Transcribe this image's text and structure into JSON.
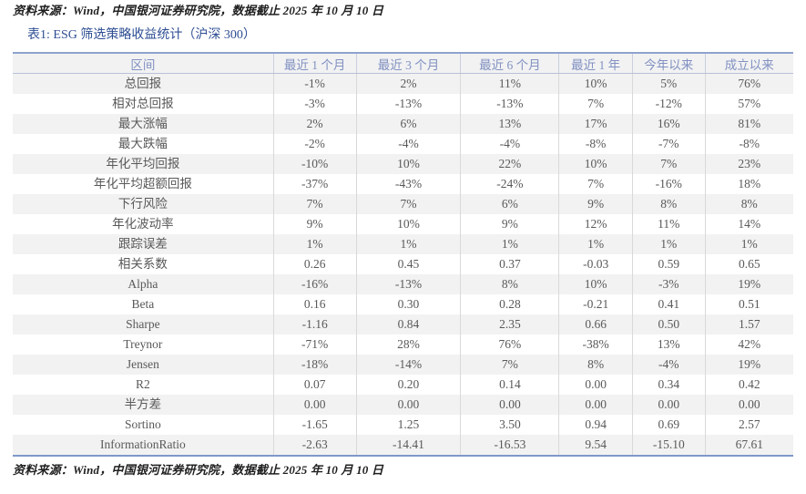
{
  "page": {
    "source_note_top": "资料来源：Wind，中国银河证券研究院，数据截止 2025 年 10 月 10 日",
    "table_title": "表1: ESG 筛选策略收益统计（沪深 300）",
    "source_note_bottom": "资料来源：Wind，中国银河证券研究院，数据截止 2025 年 10 月 10 日"
  },
  "colors": {
    "title_blue": "#2e4e93",
    "header_text_blue": "#8191c1",
    "table_border_blue": "#8ea3cd",
    "body_text_gray": "#595959",
    "stripe_gray": "#f2f2f2",
    "inner_grid_gray": "#d9d9d9"
  },
  "table": {
    "columns": [
      "区间",
      "最近 1 个月",
      "最近 3 个月",
      "最近 6 个月",
      "最近 1 年",
      "今年以来",
      "成立以来"
    ],
    "rows": [
      {
        "label": "总回报",
        "values": [
          "-1%",
          "2%",
          "11%",
          "10%",
          "5%",
          "76%"
        ]
      },
      {
        "label": "相对总回报",
        "values": [
          "-3%",
          "-13%",
          "-13%",
          "7%",
          "-12%",
          "57%"
        ]
      },
      {
        "label": "最大涨幅",
        "values": [
          "2%",
          "6%",
          "13%",
          "17%",
          "16%",
          "81%"
        ]
      },
      {
        "label": "最大跌幅",
        "values": [
          "-2%",
          "-4%",
          "-4%",
          "-8%",
          "-7%",
          "-8%"
        ]
      },
      {
        "label": "年化平均回报",
        "values": [
          "-10%",
          "10%",
          "22%",
          "10%",
          "7%",
          "23%"
        ]
      },
      {
        "label": "年化平均超额回报",
        "values": [
          "-37%",
          "-43%",
          "-24%",
          "7%",
          "-16%",
          "18%"
        ]
      },
      {
        "label": "下行风险",
        "values": [
          "7%",
          "7%",
          "6%",
          "9%",
          "8%",
          "8%"
        ]
      },
      {
        "label": "年化波动率",
        "values": [
          "9%",
          "10%",
          "9%",
          "12%",
          "11%",
          "14%"
        ]
      },
      {
        "label": "跟踪误差",
        "values": [
          "1%",
          "1%",
          "1%",
          "1%",
          "1%",
          "1%"
        ]
      },
      {
        "label": "相关系数",
        "values": [
          "0.26",
          "0.45",
          "0.37",
          "-0.03",
          "0.59",
          "0.65"
        ]
      },
      {
        "label": "Alpha",
        "values": [
          "-16%",
          "-13%",
          "8%",
          "10%",
          "-3%",
          "19%"
        ]
      },
      {
        "label": "Beta",
        "values": [
          "0.16",
          "0.30",
          "0.28",
          "-0.21",
          "0.41",
          "0.51"
        ]
      },
      {
        "label": "Sharpe",
        "values": [
          "-1.16",
          "0.84",
          "2.35",
          "0.66",
          "0.50",
          "1.57"
        ]
      },
      {
        "label": "Treynor",
        "values": [
          "-71%",
          "28%",
          "76%",
          "-38%",
          "13%",
          "42%"
        ]
      },
      {
        "label": "Jensen",
        "values": [
          "-18%",
          "-14%",
          "7%",
          "8%",
          "-4%",
          "19%"
        ]
      },
      {
        "label": "R2",
        "values": [
          "0.07",
          "0.20",
          "0.14",
          "0.00",
          "0.34",
          "0.42"
        ]
      },
      {
        "label": "半方差",
        "values": [
          "0.00",
          "0.00",
          "0.00",
          "0.00",
          "0.00",
          "0.00"
        ]
      },
      {
        "label": "Sortino",
        "values": [
          "-1.65",
          "1.25",
          "3.50",
          "0.94",
          "0.69",
          "2.57"
        ]
      },
      {
        "label": "InformationRatio",
        "values": [
          "-2.63",
          "-14.41",
          "-16.53",
          "9.54",
          "-15.10",
          "67.61"
        ]
      }
    ]
  }
}
